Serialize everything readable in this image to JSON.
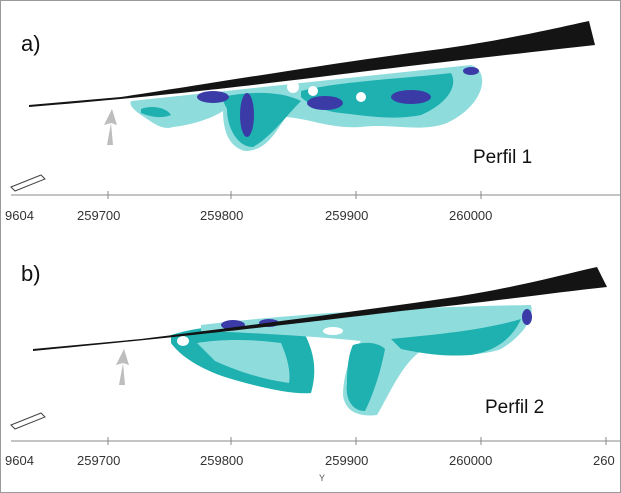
{
  "panels": [
    {
      "letter": "a)",
      "profile": "Perfil 1",
      "ticks": [
        "9604",
        "259700",
        "259800",
        "259900",
        "260000"
      ]
    },
    {
      "letter": "b)",
      "profile": "Perfil 2",
      "ticks": [
        "9604",
        "259700",
        "259800",
        "259900",
        "260000",
        "260"
      ],
      "axis_letter": "Y"
    }
  ],
  "colors": {
    "terrain": "#141414",
    "light_cyan": "#8fdcdc",
    "teal": "#1fb0b0",
    "dark_teal": "#0f8a8a",
    "blue": "#3b3ba8",
    "arrow": "#bdbdbd"
  }
}
